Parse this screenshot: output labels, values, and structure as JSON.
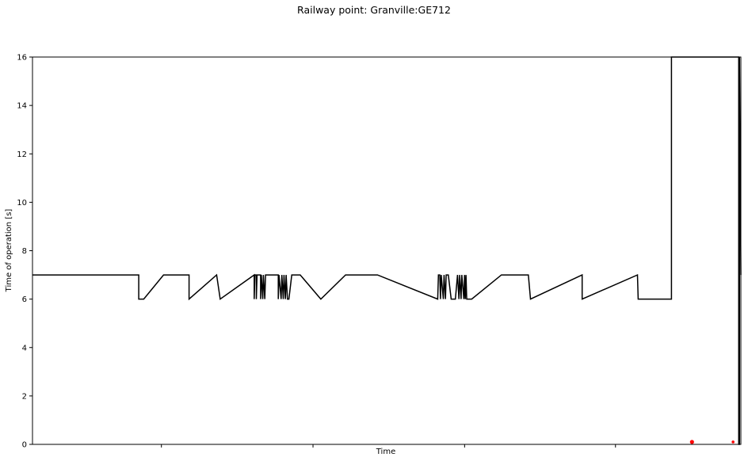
{
  "chart_data": {
    "type": "line",
    "title": "Railway point: Granville:GE712",
    "xlabel": "Time",
    "ylabel": "Time of operation [s]",
    "ylim": [
      0,
      16
    ],
    "xlim": [
      0,
      1000
    ],
    "yticks": [
      0,
      2,
      4,
      6,
      8,
      10,
      12,
      14,
      16
    ],
    "xticks": [
      182,
      396,
      610,
      823
    ],
    "xtick_labels_visible": false,
    "grid": false,
    "series": [
      {
        "color": "#000000",
        "points": [
          [
            0,
            7
          ],
          [
            150,
            7
          ],
          [
            150,
            6
          ],
          [
            157,
            6
          ],
          [
            185,
            7
          ],
          [
            221,
            7
          ],
          [
            221,
            6
          ],
          [
            260,
            7
          ],
          [
            265,
            6
          ],
          [
            313,
            7
          ],
          [
            313,
            6
          ],
          [
            314,
            7
          ],
          [
            316,
            7
          ],
          [
            316,
            6
          ],
          [
            317,
            7
          ],
          [
            322,
            7
          ],
          [
            322,
            6
          ],
          [
            323,
            7
          ],
          [
            325,
            6
          ],
          [
            326,
            7
          ],
          [
            328,
            6
          ],
          [
            329,
            7
          ],
          [
            347,
            7
          ],
          [
            347,
            6
          ],
          [
            348,
            7
          ],
          [
            351,
            6
          ],
          [
            352,
            7
          ],
          [
            354,
            6
          ],
          [
            355,
            7
          ],
          [
            357,
            6
          ],
          [
            358,
            7
          ],
          [
            360,
            6
          ],
          [
            362,
            6
          ],
          [
            366,
            7
          ],
          [
            370,
            7
          ],
          [
            371,
            7
          ],
          [
            378,
            7
          ],
          [
            407,
            6
          ],
          [
            442,
            7
          ],
          [
            487,
            7
          ],
          [
            572,
            6
          ],
          [
            573,
            7
          ],
          [
            575,
            7
          ],
          [
            576,
            6
          ],
          [
            577,
            7
          ],
          [
            580,
            6
          ],
          [
            581,
            7
          ],
          [
            583,
            6
          ],
          [
            584,
            7
          ],
          [
            587,
            7
          ],
          [
            591,
            6
          ],
          [
            597,
            6
          ],
          [
            600,
            7
          ],
          [
            602,
            6
          ],
          [
            603,
            7
          ],
          [
            605,
            6
          ],
          [
            606,
            7
          ],
          [
            609,
            6
          ],
          [
            610,
            7
          ],
          [
            611,
            6
          ],
          [
            612,
            7
          ],
          [
            613,
            6
          ],
          [
            620,
            6
          ],
          [
            662,
            7
          ],
          [
            700,
            7
          ],
          [
            703,
            6
          ],
          [
            776,
            7
          ],
          [
            776,
            6
          ],
          [
            854,
            7
          ],
          [
            855,
            6
          ],
          [
            902,
            6
          ],
          [
            902,
            16
          ],
          [
            997,
            16
          ],
          [
            997,
            0
          ],
          [
            998,
            0
          ],
          [
            998,
            16
          ],
          [
            1000,
            7
          ]
        ]
      }
    ],
    "markers": [
      {
        "color": "#ff0000",
        "x": 931,
        "y": 0.1
      },
      {
        "color": "#ff0000",
        "x": 989,
        "y": 0.1
      }
    ]
  }
}
